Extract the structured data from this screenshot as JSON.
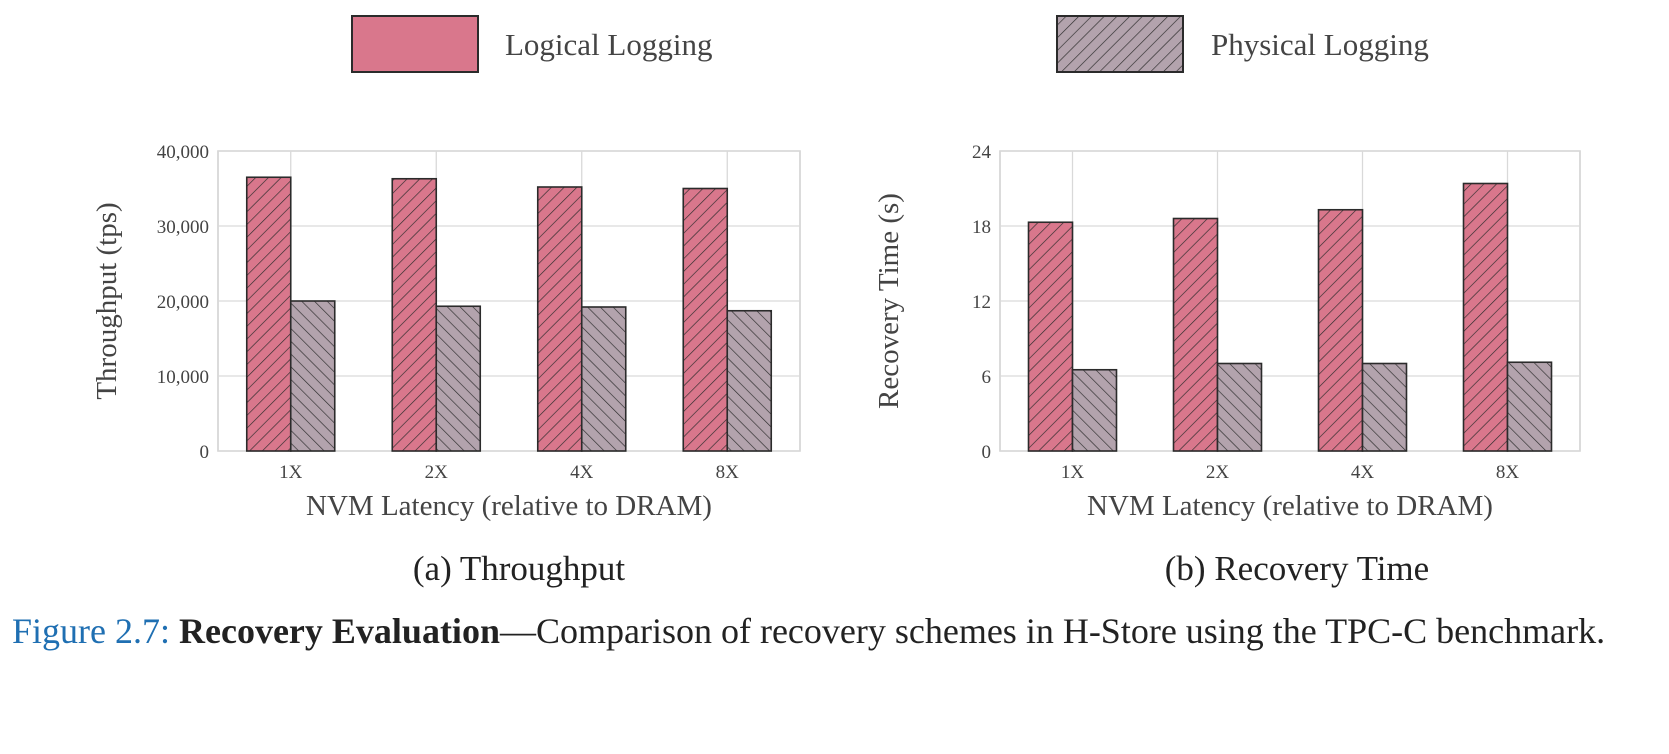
{
  "figure": {
    "legend": [
      {
        "label": "Logical Logging",
        "color": "#d9778c",
        "hatch": "forward"
      },
      {
        "label": "Physical Logging",
        "color": "#b3a3ad",
        "hatch": "backward"
      }
    ],
    "caption": {
      "number": "Figure 2.7:",
      "title": "Recovery Evaluation",
      "text": "—Comparison of recovery schemes in H-Store using the TPC-C benchmark."
    }
  },
  "chart_data": [
    {
      "type": "bar",
      "subcaption": "(a) Throughput",
      "categories": [
        "1X",
        "2X",
        "4X",
        "8X"
      ],
      "xlabel": "NVM Latency (relative to DRAM)",
      "ylabel": "Throughput (tps)",
      "ylim": [
        0,
        40000
      ],
      "yticks": [
        0,
        10000,
        20000,
        30000,
        40000
      ],
      "ytick_labels": [
        "0",
        "10,000",
        "20,000",
        "30,000",
        "40,000"
      ],
      "grid": true,
      "series": [
        {
          "name": "Logical Logging",
          "values": [
            36500,
            36300,
            35200,
            35000
          ]
        },
        {
          "name": "Physical Logging",
          "values": [
            20000,
            19300,
            19200,
            18700
          ]
        }
      ]
    },
    {
      "type": "bar",
      "subcaption": "(b) Recovery Time",
      "categories": [
        "1X",
        "2X",
        "4X",
        "8X"
      ],
      "xlabel": "NVM Latency (relative to DRAM)",
      "ylabel": "Recovery Time (s)",
      "ylim": [
        0,
        24
      ],
      "yticks": [
        0,
        6,
        12,
        18,
        24
      ],
      "ytick_labels": [
        "0",
        "6",
        "12",
        "18",
        "24"
      ],
      "grid": true,
      "series": [
        {
          "name": "Logical Logging",
          "values": [
            18.3,
            18.6,
            19.3,
            21.4
          ]
        },
        {
          "name": "Physical Logging",
          "values": [
            6.5,
            7.0,
            7.0,
            7.1
          ]
        }
      ]
    }
  ]
}
